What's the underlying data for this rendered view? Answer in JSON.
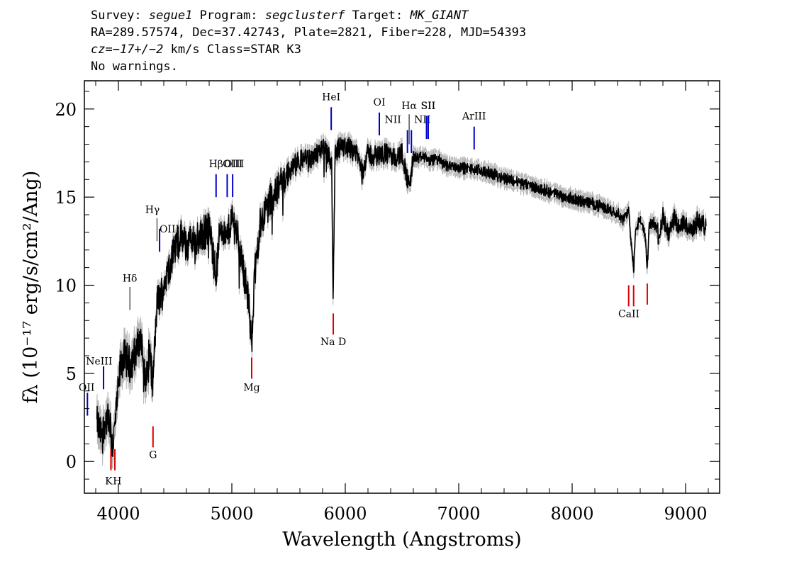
{
  "header": {
    "survey_label": "Survey:",
    "survey": "segue1",
    "program_label": "Program:",
    "program": "segclusterf",
    "target_label": "Target:",
    "target": "MK_GIANT",
    "coords": "RA=289.57574, Dec=37.42743, Plate=2821, Fiber=228, MJD=54393",
    "redshift_label": "cz=",
    "redshift": "−17+/−2",
    "redshift_unit": "km/s",
    "class_text": "Class=STAR K3",
    "warnings": "No warnings."
  },
  "chart_data": {
    "type": "line",
    "xlabel": "Wavelength (Angstroms)",
    "ylabel": "fλ (10⁻¹⁷ erg/s/cm²/Ang)",
    "xlim": [
      3700,
      9300
    ],
    "ylim": [
      -1.8,
      21.6
    ],
    "x_ticks": [
      4000,
      5000,
      6000,
      7000,
      8000,
      9000
    ],
    "y_ticks": [
      0,
      5,
      10,
      15,
      20
    ],
    "grid": false,
    "colors": {
      "spectrum": "#000000",
      "error": "#b8b8b8",
      "emission": "#0000cc",
      "absorption": "#dd0000"
    },
    "series": [
      {
        "x": [
          3810,
          3850,
          3900,
          3930,
          3950,
          3980,
          4020,
          4060,
          4101,
          4150,
          4200,
          4240,
          4280,
          4300,
          4340,
          4380,
          4420,
          4480,
          4540,
          4600,
          4650,
          4700,
          4760,
          4800,
          4861,
          4900,
          4950,
          5000,
          5050,
          5100,
          5150,
          5172,
          5200,
          5250,
          5300,
          5350,
          5400,
          5450,
          5500,
          5550,
          5600,
          5650,
          5700,
          5750,
          5800,
          5850,
          5880,
          5893,
          5910,
          5950,
          6000,
          6050,
          6100,
          6150,
          6200,
          6250,
          6300,
          6350,
          6400,
          6450,
          6500,
          6563,
          6600,
          6650,
          6700,
          6750,
          6800,
          6900,
          7000,
          7200,
          7400,
          7600,
          7800,
          8000,
          8200,
          8400,
          8450,
          8500,
          8520,
          8542,
          8560,
          8600,
          8640,
          8662,
          8680,
          8720,
          8760,
          8800,
          8850,
          8900,
          8950,
          9000,
          9050,
          9100,
          9150,
          9180
        ],
        "y": [
          2.2,
          1.5,
          2.5,
          1.8,
          0.8,
          2.8,
          5.5,
          6.0,
          5.5,
          6.2,
          7.0,
          4.5,
          6.5,
          4.0,
          9.0,
          9.5,
          10.5,
          11.8,
          12.7,
          12.3,
          12.6,
          12.5,
          13.0,
          13.3,
          10.5,
          13.5,
          12.5,
          13.8,
          13.0,
          11.0,
          9.0,
          6.5,
          10.5,
          13.5,
          14.3,
          15.0,
          15.4,
          16.0,
          16.3,
          16.8,
          17.0,
          17.3,
          17.1,
          17.5,
          17.7,
          17.4,
          16.8,
          9.0,
          17.3,
          17.8,
          17.9,
          17.8,
          17.5,
          16.5,
          17.5,
          17.3,
          17.4,
          17.5,
          17.3,
          17.2,
          17.5,
          15.5,
          17.3,
          17.2,
          17.3,
          17.0,
          17.2,
          16.8,
          16.7,
          16.5,
          16.1,
          15.7,
          15.3,
          14.9,
          14.6,
          14.1,
          13.7,
          14.2,
          12.5,
          10.8,
          13.2,
          13.7,
          13.0,
          11.0,
          13.4,
          13.6,
          12.9,
          13.8,
          12.8,
          13.7,
          13.2,
          13.6,
          13.0,
          13.6,
          13.4,
          13.3
        ]
      }
    ],
    "emission_lines": [
      {
        "label": "HeI",
        "x": 5876,
        "y0": 18.8,
        "y1": 20.1,
        "label_x": 5876,
        "label_y": 20.5,
        "style": "blue"
      },
      {
        "label": "OI",
        "x": 6300,
        "y0": 18.5,
        "y1": 19.8,
        "label_x": 6300,
        "label_y": 20.2,
        "style": "blue"
      },
      {
        "label": "NII",
        "x": 6548,
        "y0": 17.5,
        "y1": 18.8,
        "label_x": 6420,
        "label_y": 19.2,
        "style": "blue"
      },
      {
        "label": "Hα",
        "x": 6563,
        "y0": 18.0,
        "y1": 19.7,
        "label_x": 6563,
        "label_y": 20.0,
        "style": "thin"
      },
      {
        "label": "NII",
        "x": 6583,
        "y0": 17.5,
        "y1": 18.8,
        "label_x": 6680,
        "label_y": 19.2,
        "style": "blue"
      },
      {
        "label": "SII",
        "x": 6716,
        "y0": 18.3,
        "y1": 19.6,
        "label_x": 6730,
        "label_y": 20.0,
        "style": "blue"
      },
      {
        "label": "SII",
        "x": 6731,
        "y0": 18.3,
        "y1": 19.6,
        "label_x": 6731,
        "label_y": 20.0,
        "style": "blue"
      },
      {
        "label": "ArIII",
        "x": 7136,
        "y0": 17.7,
        "y1": 19.0,
        "label_x": 7136,
        "label_y": 19.4,
        "style": "blue"
      },
      {
        "label": "Hβ",
        "x": 4861,
        "y0": 15.0,
        "y1": 16.3,
        "label_x": 4861,
        "label_y": 16.7,
        "style": "blue"
      },
      {
        "label": "OIII",
        "x": 4959,
        "y0": 15.0,
        "y1": 16.3,
        "label_x": 5020,
        "label_y": 16.7,
        "style": "blue"
      },
      {
        "label": "OIII",
        "x": 5007,
        "y0": 15.0,
        "y1": 16.3,
        "label_x": 5007,
        "label_y": 16.7,
        "style": "blue"
      },
      {
        "label": "Hγ",
        "x": 4340,
        "y0": 12.5,
        "y1": 13.8,
        "label_x": 4300,
        "label_y": 14.1,
        "style": "thin"
      },
      {
        "label": "OIII",
        "x": 4363,
        "y0": 11.9,
        "y1": 13.2,
        "label_x": 4450,
        "label_y": 13.0,
        "style": "blue"
      },
      {
        "label": "Hδ",
        "x": 4101,
        "y0": 8.6,
        "y1": 9.9,
        "label_x": 4101,
        "label_y": 10.2,
        "style": "thin"
      },
      {
        "label": "NeIII",
        "x": 3869,
        "y0": 4.1,
        "y1": 5.4,
        "label_x": 3830,
        "label_y": 5.5,
        "style": "blue"
      },
      {
        "label": "OII",
        "x": 3727,
        "y0": 2.6,
        "y1": 3.9,
        "label_x": 3720,
        "label_y": 4.0,
        "style": "blue"
      }
    ],
    "absorption_lines": [
      {
        "label": "K",
        "x": 3934,
        "y0": -0.5,
        "y1": 0.7,
        "label_x": 3915,
        "label_y": -1.3,
        "style": "red"
      },
      {
        "label": "H",
        "x": 3969,
        "y0": -0.5,
        "y1": 0.7,
        "label_x": 3990,
        "label_y": -1.3,
        "style": "red"
      },
      {
        "label": "G",
        "x": 4305,
        "y0": 0.8,
        "y1": 2.0,
        "label_x": 4305,
        "label_y": 0.2,
        "style": "red"
      },
      {
        "label": "Mg",
        "x": 5175,
        "y0": 4.7,
        "y1": 5.9,
        "label_x": 5175,
        "label_y": 4.0,
        "style": "red"
      },
      {
        "label": "Na D",
        "x": 5894,
        "y0": 7.2,
        "y1": 8.4,
        "label_x": 5894,
        "label_y": 6.6,
        "style": "red"
      },
      {
        "label": "CaII",
        "x": 8498,
        "y0": 8.8,
        "y1": 10.0,
        "label_x": 8500,
        "label_y": 8.2,
        "style": "red"
      },
      {
        "label": "",
        "x": 8542,
        "y0": 8.8,
        "y1": 10.0,
        "style": "red"
      },
      {
        "label": "",
        "x": 8662,
        "y0": 8.9,
        "y1": 10.1,
        "style": "red"
      }
    ]
  }
}
